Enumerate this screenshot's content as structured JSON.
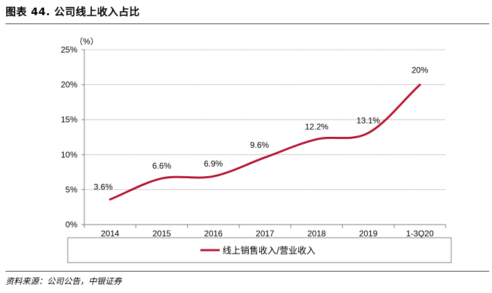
{
  "figure": {
    "title": "图表 44. 公司线上收入占比",
    "source": "资料来源：公司公告，中银证券"
  },
  "colors": {
    "series": "#b5112e",
    "grid": "#7f7f7f",
    "axis": "#7f7f7f"
  },
  "chart_data": {
    "type": "line",
    "unit_label": "（%）",
    "categories": [
      "2014",
      "2015",
      "2016",
      "2017",
      "2018",
      "2019",
      "1-3Q20"
    ],
    "ylim": [
      0,
      25
    ],
    "yticks": [
      0,
      5,
      10,
      15,
      20,
      25
    ],
    "ytick_labels": [
      "0%",
      "5%",
      "10%",
      "15%",
      "20%",
      "25%"
    ],
    "grid": true,
    "smooth": true,
    "legend_position": "bottom",
    "series": [
      {
        "name": "线上销售收入/营业收入",
        "values": [
          3.6,
          6.6,
          6.9,
          9.6,
          12.2,
          13.1,
          20
        ],
        "labels": [
          "3.6%",
          "6.6%",
          "6.9%",
          "9.6%",
          "12.2%",
          "13.1%",
          "20%"
        ]
      }
    ]
  }
}
